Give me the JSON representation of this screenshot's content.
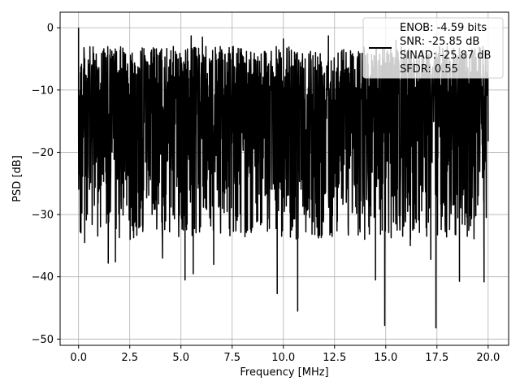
{
  "chart_data": {
    "type": "line",
    "xlabel": "Frequency [MHz]",
    "ylabel": "PSD [dB]",
    "xlim": [
      -0.9,
      21.0
    ],
    "ylim": [
      -51,
      2.5
    ],
    "x_ticks": [
      0.0,
      2.5,
      5.0,
      7.5,
      10.0,
      12.5,
      15.0,
      17.5,
      20.0
    ],
    "x_tick_labels": [
      "0.0",
      "2.5",
      "5.0",
      "7.5",
      "10.0",
      "12.5",
      "15.0",
      "17.5",
      "20.0"
    ],
    "y_ticks": [
      0,
      -10,
      -20,
      -30,
      -40,
      -50
    ],
    "y_tick_labels": [
      "0",
      "−10",
      "−20",
      "−30",
      "−40",
      "−50"
    ],
    "grid": true,
    "legend_position": "top-right",
    "legend": [
      "ENOB: -4.59 bits",
      "SNR: -25.85 dB",
      "SINAD: -25.87 dB",
      "SFDR: 0.55"
    ],
    "series_color": "#000000",
    "series": [
      {
        "x_start": 0.0,
        "x_end": 20.0,
        "approx_noise_range_db": [
          -30,
          -3
        ],
        "values_note_peaks": [
          {
            "x": 0.0,
            "y": 0.0
          },
          {
            "x": 0.3,
            "y": -34.5
          },
          {
            "x": 0.55,
            "y": -6.5
          },
          {
            "x": 1.45,
            "y": -37.8
          },
          {
            "x": 1.8,
            "y": -37.6
          },
          {
            "x": 2.4,
            "y": -6.5
          },
          {
            "x": 3.5,
            "y": -6.0
          },
          {
            "x": 4.1,
            "y": -37.0
          },
          {
            "x": 5.2,
            "y": -40.5
          },
          {
            "x": 5.5,
            "y": -1.3
          },
          {
            "x": 5.6,
            "y": -39.5
          },
          {
            "x": 6.05,
            "y": -1.5
          },
          {
            "x": 6.6,
            "y": -38.0
          },
          {
            "x": 7.0,
            "y": -4.0
          },
          {
            "x": 9.7,
            "y": -42.7
          },
          {
            "x": 10.0,
            "y": -1.8
          },
          {
            "x": 10.7,
            "y": -45.5
          },
          {
            "x": 12.2,
            "y": -1.3
          },
          {
            "x": 14.5,
            "y": -40.5
          },
          {
            "x": 14.95,
            "y": -47.8
          },
          {
            "x": 15.5,
            "y": -2.0
          },
          {
            "x": 16.2,
            "y": -35.0
          },
          {
            "x": 17.2,
            "y": -37.2
          },
          {
            "x": 17.45,
            "y": -48.2
          },
          {
            "x": 18.0,
            "y": -3.0
          },
          {
            "x": 18.6,
            "y": -40.7
          },
          {
            "x": 19.8,
            "y": -40.8
          },
          {
            "x": 20.0,
            "y": -15.0
          }
        ]
      }
    ]
  }
}
